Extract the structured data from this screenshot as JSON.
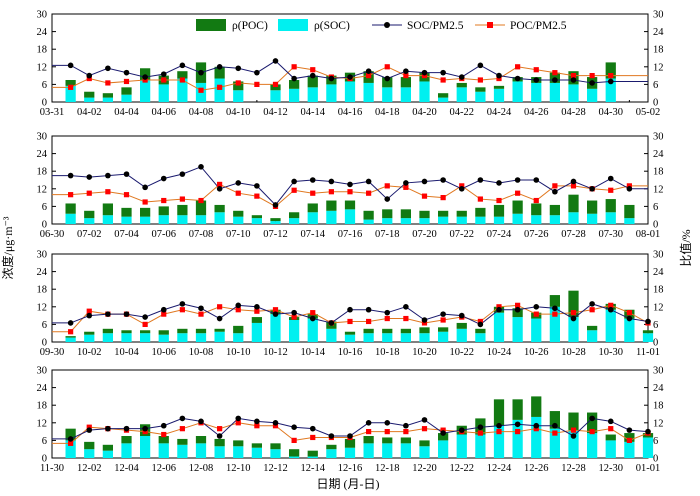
{
  "colors": {
    "poc": "#127a12",
    "soc": "#00f0f0",
    "soc_ratio": "#000000",
    "soc_ratio_line": "#1a1a6e",
    "poc_ratio": "#ff0000",
    "poc_ratio_line": "#e07820"
  },
  "legend": [
    "ρ(POC)",
    "ρ(SOC)",
    "SOC/PM2.5",
    "POC/PM2.5"
  ],
  "ylabel_left": "浓度/μg·m⁻³",
  "ylabel_right": "比值/%",
  "xlabel": "日期 (月-日)",
  "chart_data": [
    {
      "type": "bar",
      "ylim": [
        0,
        30
      ],
      "y2lim": [
        0,
        30
      ],
      "yticks": [
        0,
        6,
        12,
        18,
        24,
        30
      ],
      "xticks": [
        "03-31",
        "04-02",
        "04-04",
        "04-06",
        "04-08",
        "04-10",
        "04-12",
        "04-14",
        "04-16",
        "04-18",
        "04-20",
        "04-22",
        "04-24",
        "04-26",
        "04-28",
        "04-30",
        "05-02"
      ],
      "soc": [
        5.5,
        1.5,
        1.5,
        2.5,
        7.5,
        6,
        8,
        6.5,
        8,
        4,
        0,
        4,
        4.5,
        5,
        6,
        7,
        6.5,
        5,
        5,
        7,
        1.5,
        5,
        3.5,
        4.5,
        7,
        6.5,
        6.5,
        6,
        4.5,
        8
      ],
      "poc": [
        2,
        2,
        1.5,
        2.5,
        4,
        3,
        2.5,
        7,
        4,
        3,
        0,
        2,
        3,
        4,
        3,
        3,
        4,
        3.5,
        3.5,
        3,
        1.5,
        1.5,
        1.5,
        1,
        1.5,
        2,
        3.5,
        4.5,
        4,
        5.5
      ],
      "soc_ratio": [
        12.5,
        9,
        11.5,
        10,
        8.5,
        9.5,
        12.5,
        10,
        12,
        11.5,
        10,
        14,
        8,
        9,
        8,
        8.5,
        10.5,
        8,
        10.5,
        10,
        10,
        8.5,
        12.5,
        9,
        8,
        7.5,
        7.5,
        7.5,
        6.5,
        7
      ],
      "poc_ratio": [
        5,
        8,
        6.5,
        7,
        7.5,
        7.5,
        7.5,
        4,
        5,
        6.5,
        6,
        6,
        12,
        11,
        8.5,
        8,
        9,
        12,
        9,
        9,
        7.5,
        8,
        7.5,
        8,
        12,
        11,
        10,
        9,
        9,
        9
      ]
    },
    {
      "type": "bar",
      "ylim": [
        0,
        30
      ],
      "y2lim": [
        0,
        30
      ],
      "yticks": [
        0,
        6,
        12,
        18,
        24,
        30
      ],
      "xticks": [
        "06-30",
        "07-02",
        "07-04",
        "07-06",
        "07-08",
        "07-10",
        "07-12",
        "07-14",
        "07-16",
        "07-18",
        "07-20",
        "07-22",
        "07-24",
        "07-26",
        "07-28",
        "07-30",
        "08-01"
      ],
      "soc": [
        3.5,
        2,
        3,
        2.5,
        2.5,
        3,
        3,
        3,
        4,
        2.5,
        2,
        1,
        2,
        4,
        4.5,
        5,
        1.5,
        2,
        2,
        2,
        2.5,
        2.5,
        2.5,
        2.5,
        3.5,
        3,
        3,
        4,
        3.5,
        4,
        2
      ],
      "poc": [
        3.5,
        2.5,
        4,
        3,
        3,
        3,
        3.5,
        5,
        2.5,
        2,
        1,
        1,
        2,
        3,
        3.5,
        3,
        3,
        3,
        3,
        2.5,
        2,
        2,
        3,
        4,
        4.5,
        4,
        3.5,
        6,
        4.5,
        4.5,
        4.5
      ],
      "soc_ratio": [
        16.5,
        16,
        16.5,
        17,
        12.5,
        15.5,
        17,
        19.5,
        12,
        14,
        13,
        6.5,
        14.5,
        15,
        14.5,
        13.5,
        14.5,
        8.5,
        14,
        14.5,
        15,
        12,
        15,
        14,
        15,
        15,
        11,
        14.5,
        12,
        15.5,
        12
      ],
      "poc_ratio": [
        10,
        10.5,
        11,
        10,
        7.5,
        8,
        8.5,
        8,
        13.5,
        10.5,
        9.5,
        6,
        11.5,
        10.5,
        11,
        11,
        10.5,
        13,
        12.5,
        9.5,
        9,
        13,
        8.5,
        8,
        10.5,
        8,
        13,
        13,
        12,
        11.5,
        13
      ]
    },
    {
      "type": "bar",
      "ylim": [
        0,
        30
      ],
      "y2lim": [
        0,
        30
      ],
      "yticks": [
        0,
        6,
        12,
        18,
        24,
        30
      ],
      "xticks": [
        "09-30",
        "10-02",
        "10-04",
        "10-06",
        "10-08",
        "10-10",
        "10-12",
        "10-14",
        "10-16",
        "10-18",
        "10-20",
        "10-22",
        "10-24",
        "10-26",
        "10-28",
        "10-30",
        "11-01"
      ],
      "soc": [
        1.5,
        2.5,
        3,
        3,
        3,
        2.5,
        3,
        3,
        3.5,
        3,
        6.5,
        9.5,
        7.5,
        8,
        4.5,
        2.5,
        3,
        3,
        3,
        3,
        3.5,
        4.5,
        3,
        10,
        8.5,
        8,
        12,
        8.5,
        4,
        11,
        8,
        3
      ],
      "poc": [
        0.5,
        1,
        1.5,
        1,
        1,
        1.5,
        1.5,
        1.5,
        1,
        2.5,
        2,
        1.5,
        1,
        1.5,
        2.5,
        1,
        1.5,
        1.5,
        1.5,
        2,
        1.5,
        2,
        1.5,
        2,
        3,
        2,
        4,
        9,
        1.5,
        2,
        3,
        1
      ],
      "soc_ratio": [
        6.5,
        9,
        9.5,
        9.5,
        8.5,
        11,
        13,
        11.5,
        8,
        12.5,
        12,
        9.5,
        10,
        8,
        6.5,
        11,
        11,
        10,
        12,
        7.5,
        9.5,
        9,
        6,
        11,
        11,
        12,
        11.5,
        8,
        13,
        11,
        8,
        7
      ],
      "poc_ratio": [
        3.5,
        10.5,
        9.5,
        9.5,
        6,
        9.5,
        11,
        9.5,
        12,
        11,
        10.5,
        11,
        8.5,
        10,
        6.5,
        7,
        7,
        8,
        8,
        6.5,
        7.5,
        8.5,
        7,
        12,
        12.5,
        9.5,
        9.5,
        10,
        11,
        12.5,
        10,
        6.5
      ]
    },
    {
      "type": "bar",
      "ylim": [
        0,
        30
      ],
      "y2lim": [
        0,
        30
      ],
      "yticks": [
        0,
        6,
        12,
        18,
        24,
        30
      ],
      "xticks": [
        "11-30",
        "12-02",
        "12-04",
        "12-06",
        "12-08",
        "12-10",
        "12-12",
        "12-14",
        "12-16",
        "12-18",
        "12-20",
        "12-22",
        "12-24",
        "12-26",
        "12-28",
        "12-30",
        "01-01"
      ],
      "soc": [
        6,
        3,
        2.5,
        5,
        7.5,
        5,
        4.5,
        5,
        4,
        4,
        3.5,
        3,
        0.5,
        0.5,
        3,
        3.5,
        5,
        5,
        5,
        4,
        6,
        8,
        8,
        11,
        13,
        14,
        10,
        9.5,
        8.5,
        6,
        5.5,
        7
      ],
      "poc": [
        4,
        2.5,
        2,
        2.5,
        4,
        2.5,
        2,
        2.5,
        2.5,
        2,
        1.5,
        2,
        2.5,
        2,
        1.5,
        3,
        2.5,
        2,
        2,
        2,
        2.5,
        3,
        5.5,
        9,
        7,
        7,
        6,
        6,
        7,
        2,
        3,
        1.5
      ],
      "soc_ratio": [
        6.5,
        9.5,
        10,
        10,
        10,
        11,
        13.5,
        12.5,
        7.5,
        13.5,
        12.5,
        12,
        10.5,
        10,
        7.5,
        7.5,
        12,
        12,
        11,
        13,
        8.5,
        9.5,
        10.5,
        11,
        11.5,
        11,
        11,
        7.5,
        13.5,
        12.5,
        9.5,
        9
      ],
      "poc_ratio": [
        5,
        10.5,
        10,
        9.5,
        9,
        8,
        10,
        12,
        10,
        12,
        11,
        11,
        6,
        7,
        7,
        7,
        9,
        9,
        9,
        10,
        9.5,
        9,
        8.5,
        9,
        9,
        10,
        8.5,
        9.5,
        9,
        10,
        6,
        8.5
      ]
    }
  ]
}
